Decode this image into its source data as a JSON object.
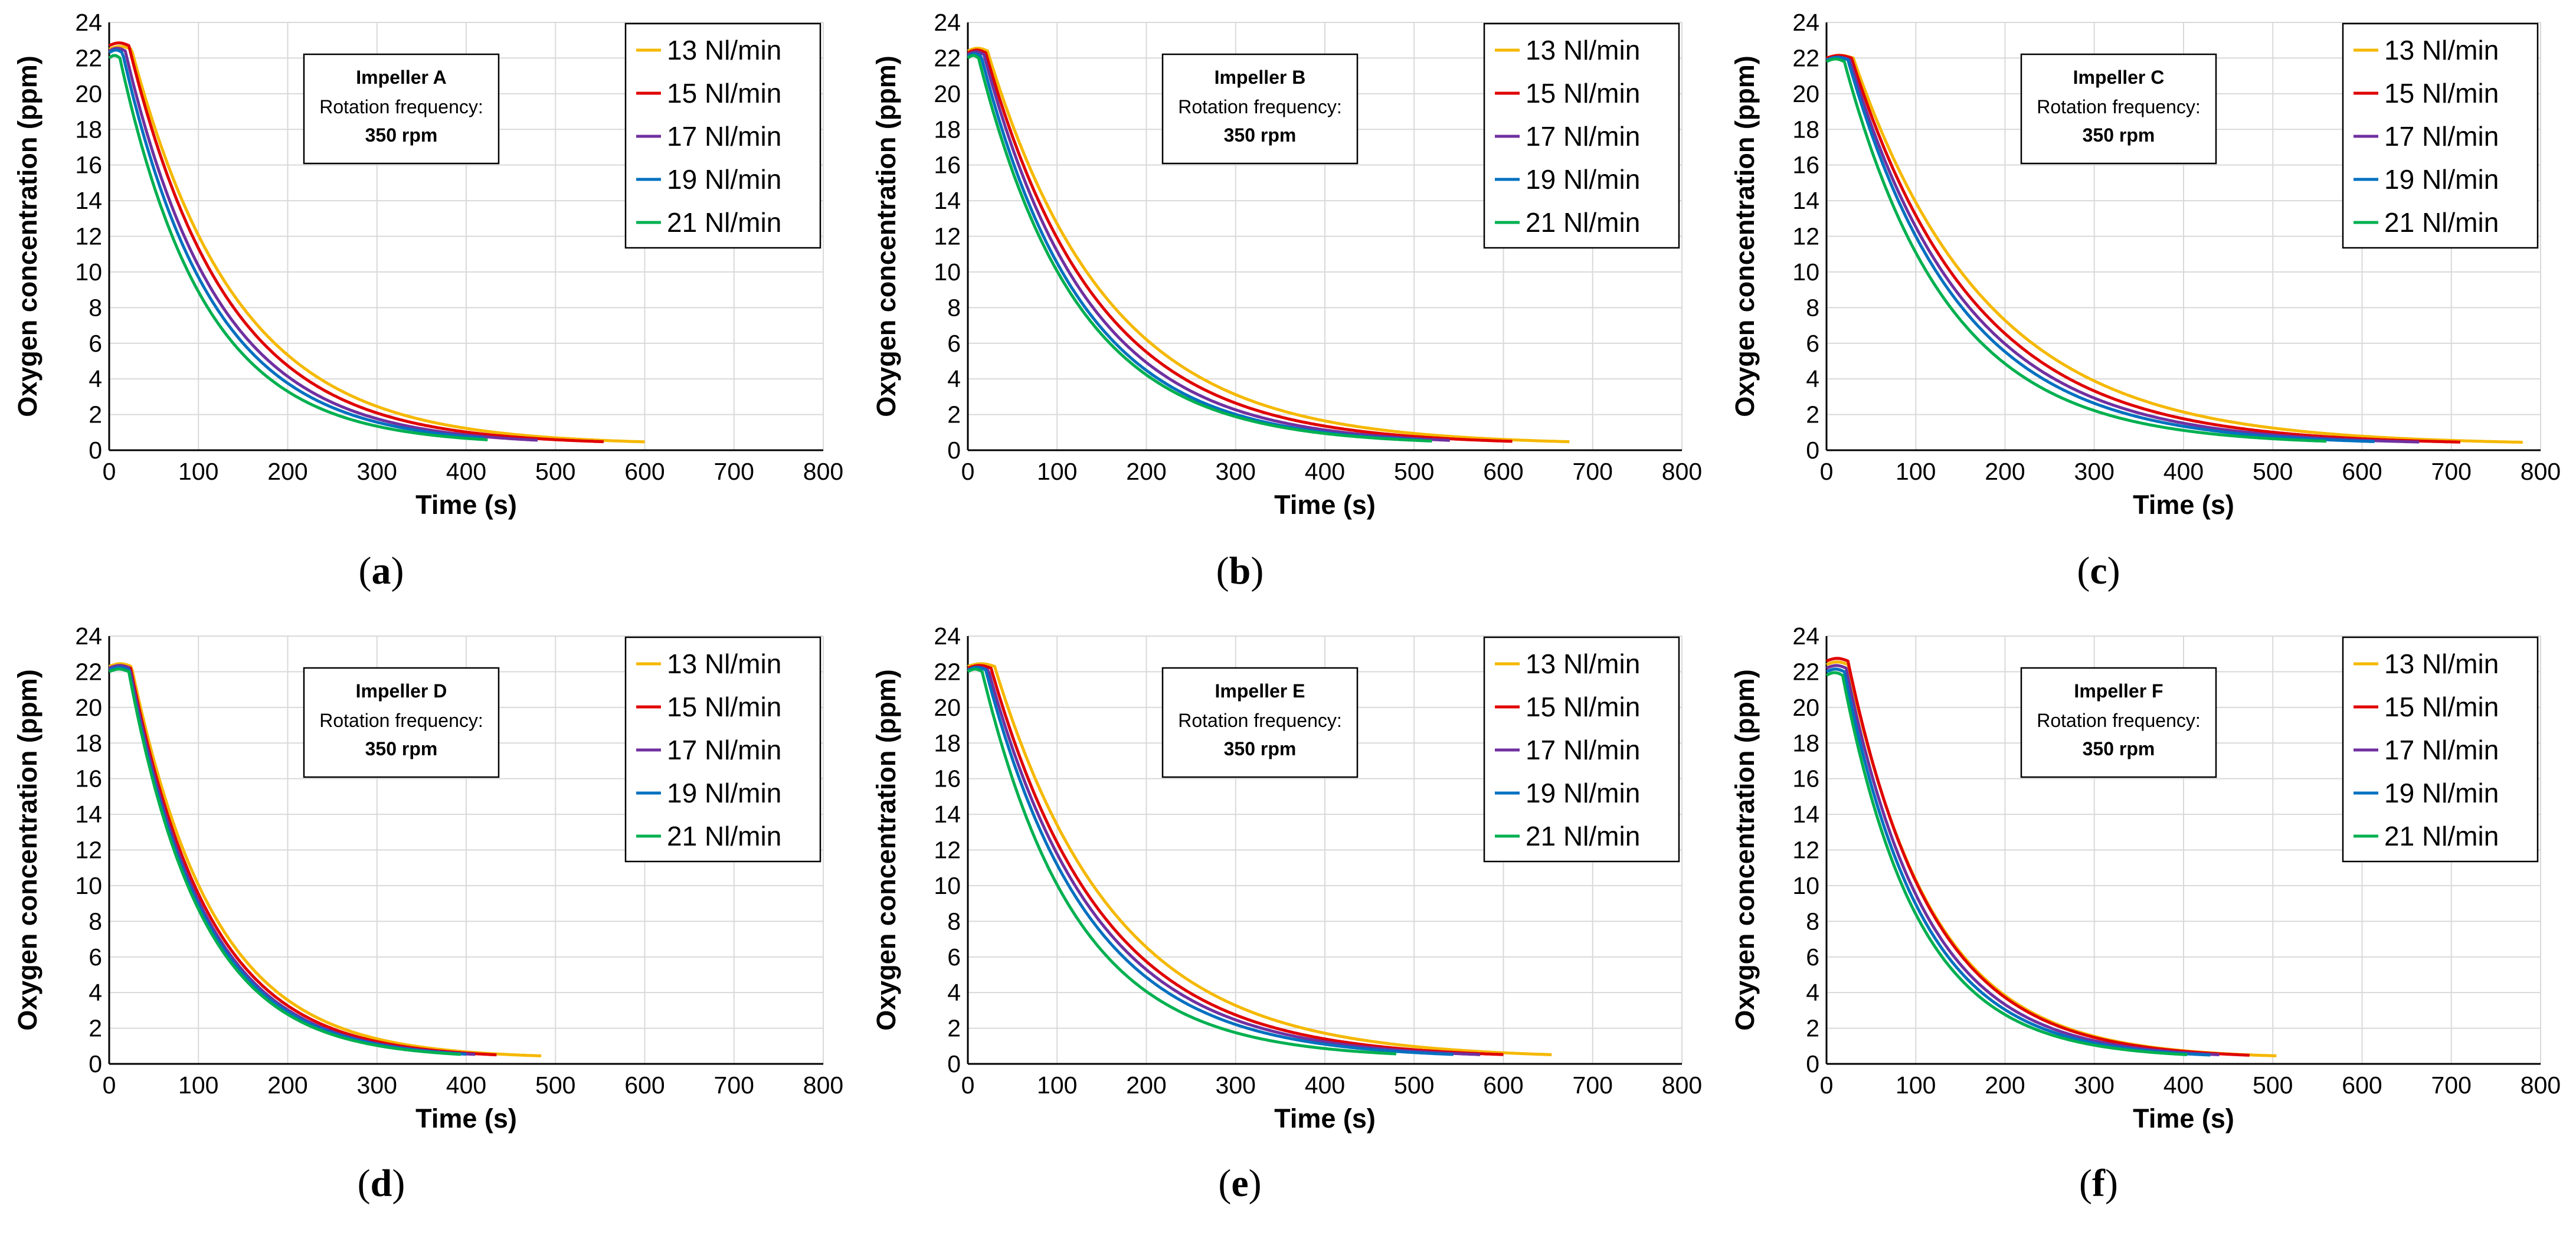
{
  "figure": {
    "series_names": [
      "13 Nl/min",
      "15 Nl/min",
      "17 Nl/min",
      "19 Nl/min",
      "21 Nl/min"
    ],
    "series_colors": [
      "#f5b800",
      "#e00000",
      "#7030a0",
      "#0070c0",
      "#00b050"
    ],
    "panel_label_open": "(",
    "panel_label_close": ")"
  },
  "chart_data": [
    {
      "type": "line",
      "label": "a",
      "annotation": {
        "title": "Impeller A",
        "line1": "Rotation frequency:",
        "line2": "350 rpm"
      },
      "xlabel": "Time (s)",
      "ylabel": "Oxygen concentration (ppm)",
      "xlim": [
        0,
        800
      ],
      "ylim": [
        0,
        24
      ],
      "xticks": [
        0,
        100,
        200,
        300,
        400,
        500,
        600,
        700,
        800
      ],
      "yticks": [
        0,
        2,
        4,
        6,
        8,
        10,
        12,
        14,
        16,
        18,
        20,
        22,
        24
      ],
      "grid": true,
      "legend": "top-right",
      "series": [
        {
          "name": "13 Nl/min",
          "start": 22.5,
          "hold": 25,
          "tau": 118,
          "end": 600,
          "floor": 0.3
        },
        {
          "name": "15 Nl/min",
          "start": 22.7,
          "hold": 22,
          "tau": 110,
          "end": 555,
          "floor": 0.3
        },
        {
          "name": "17 Nl/min",
          "start": 22.4,
          "hold": 18,
          "tau": 104,
          "end": 480,
          "floor": 0.3
        },
        {
          "name": "19 Nl/min",
          "start": 22.3,
          "hold": 15,
          "tau": 100,
          "end": 420,
          "floor": 0.3
        },
        {
          "name": "21 Nl/min",
          "start": 22.0,
          "hold": 12,
          "tau": 95,
          "end": 425,
          "floor": 0.3
        }
      ]
    },
    {
      "type": "line",
      "label": "b",
      "annotation": {
        "title": "Impeller B",
        "line1": "Rotation frequency:",
        "line2": "350 rpm"
      },
      "xlabel": "Time (s)",
      "ylabel": "Oxygen concentration (ppm)",
      "xlim": [
        0,
        800
      ],
      "ylim": [
        0,
        24
      ],
      "xticks": [
        0,
        100,
        200,
        300,
        400,
        500,
        600,
        700,
        800
      ],
      "yticks": [
        0,
        2,
        4,
        6,
        8,
        10,
        12,
        14,
        16,
        18,
        20,
        22,
        24
      ],
      "grid": true,
      "legend": "top-right",
      "series": [
        {
          "name": "13 Nl/min",
          "start": 22.4,
          "hold": 22,
          "tau": 135,
          "end": 675,
          "floor": 0.3
        },
        {
          "name": "15 Nl/min",
          "start": 22.3,
          "hold": 20,
          "tau": 125,
          "end": 610,
          "floor": 0.3
        },
        {
          "name": "17 Nl/min",
          "start": 22.2,
          "hold": 18,
          "tau": 117,
          "end": 540,
          "floor": 0.3
        },
        {
          "name": "19 Nl/min",
          "start": 22.1,
          "hold": 15,
          "tau": 112,
          "end": 510,
          "floor": 0.3
        },
        {
          "name": "21 Nl/min",
          "start": 22.0,
          "hold": 12,
          "tau": 110,
          "end": 520,
          "floor": 0.3
        }
      ]
    },
    {
      "type": "line",
      "label": "c",
      "annotation": {
        "title": "Impeller C",
        "line1": "Rotation frequency:",
        "line2": "350 rpm"
      },
      "xlabel": "Time (s)",
      "ylabel": "Oxygen concentration (ppm)",
      "xlim": [
        0,
        800
      ],
      "ylim": [
        0,
        24
      ],
      "xticks": [
        0,
        100,
        200,
        300,
        400,
        500,
        600,
        700,
        800
      ],
      "yticks": [
        0,
        2,
        4,
        6,
        8,
        10,
        12,
        14,
        16,
        18,
        20,
        22,
        24
      ],
      "grid": true,
      "legend": "top-right",
      "series": [
        {
          "name": "13 Nl/min",
          "start": 22.0,
          "hold": 30,
          "tau": 150,
          "end": 780,
          "floor": 0.3
        },
        {
          "name": "15 Nl/min",
          "start": 22.0,
          "hold": 28,
          "tau": 138,
          "end": 710,
          "floor": 0.3
        },
        {
          "name": "17 Nl/min",
          "start": 21.9,
          "hold": 26,
          "tau": 130,
          "end": 665,
          "floor": 0.3
        },
        {
          "name": "19 Nl/min",
          "start": 21.9,
          "hold": 24,
          "tau": 124,
          "end": 615,
          "floor": 0.3
        },
        {
          "name": "21 Nl/min",
          "start": 21.8,
          "hold": 20,
          "tau": 116,
          "end": 560,
          "floor": 0.3
        }
      ]
    },
    {
      "type": "line",
      "label": "d",
      "annotation": {
        "title": "Impeller D",
        "line1": "Rotation frequency:",
        "line2": "350 rpm"
      },
      "xlabel": "Time (s)",
      "ylabel": "Oxygen concentration (ppm)",
      "xlim": [
        0,
        800
      ],
      "ylim": [
        0,
        24
      ],
      "xticks": [
        0,
        100,
        200,
        300,
        400,
        500,
        600,
        700,
        800
      ],
      "yticks": [
        0,
        2,
        4,
        6,
        8,
        10,
        12,
        14,
        16,
        18,
        20,
        22,
        24
      ],
      "grid": true,
      "legend": "top-right",
      "series": [
        {
          "name": "13 Nl/min",
          "start": 22.3,
          "hold": 25,
          "tau": 92,
          "end": 485,
          "floor": 0.3
        },
        {
          "name": "15 Nl/min",
          "start": 22.2,
          "hold": 24,
          "tau": 88,
          "end": 435,
          "floor": 0.3
        },
        {
          "name": "17 Nl/min",
          "start": 22.2,
          "hold": 23,
          "tau": 85,
          "end": 410,
          "floor": 0.3
        },
        {
          "name": "19 Nl/min",
          "start": 22.1,
          "hold": 22,
          "tau": 84,
          "end": 400,
          "floor": 0.3
        },
        {
          "name": "21 Nl/min",
          "start": 22.0,
          "hold": 22,
          "tau": 82,
          "end": 395,
          "floor": 0.3
        }
      ]
    },
    {
      "type": "line",
      "label": "e",
      "annotation": {
        "title": "Impeller E",
        "line1": "Rotation frequency:",
        "line2": "350 rpm"
      },
      "xlabel": "Time (s)",
      "ylabel": "Oxygen concentration (ppm)",
      "xlim": [
        0,
        800
      ],
      "ylim": [
        0,
        24
      ],
      "xticks": [
        0,
        100,
        200,
        300,
        400,
        500,
        600,
        700,
        800
      ],
      "yticks": [
        0,
        2,
        4,
        6,
        8,
        10,
        12,
        14,
        16,
        18,
        20,
        22,
        24
      ],
      "grid": true,
      "legend": "top-right",
      "series": [
        {
          "name": "13 Nl/min",
          "start": 22.3,
          "hold": 30,
          "tau": 135,
          "end": 655,
          "floor": 0.3
        },
        {
          "name": "15 Nl/min",
          "start": 22.2,
          "hold": 26,
          "tau": 125,
          "end": 600,
          "floor": 0.3
        },
        {
          "name": "17 Nl/min",
          "start": 22.1,
          "hold": 23,
          "tau": 120,
          "end": 575,
          "floor": 0.3
        },
        {
          "name": "19 Nl/min",
          "start": 22.1,
          "hold": 20,
          "tau": 115,
          "end": 545,
          "floor": 0.3
        },
        {
          "name": "21 Nl/min",
          "start": 22.0,
          "hold": 16,
          "tau": 105,
          "end": 480,
          "floor": 0.3
        }
      ]
    },
    {
      "type": "line",
      "label": "f",
      "annotation": {
        "title": "Impeller F",
        "line1": "Rotation frequency:",
        "line2": "350 rpm"
      },
      "xlabel": "Time (s)",
      "ylabel": "Oxygen concentration (ppm)",
      "xlim": [
        0,
        800
      ],
      "ylim": [
        0,
        24
      ],
      "xticks": [
        0,
        100,
        200,
        300,
        400,
        500,
        600,
        700,
        800
      ],
      "yticks": [
        0,
        2,
        4,
        6,
        8,
        10,
        12,
        14,
        16,
        18,
        20,
        22,
        24
      ],
      "grid": true,
      "legend": "top-right",
      "series": [
        {
          "name": "13 Nl/min",
          "start": 22.4,
          "hold": 24,
          "tau": 96,
          "end": 505,
          "floor": 0.3
        },
        {
          "name": "15 Nl/min",
          "start": 22.6,
          "hold": 24,
          "tau": 94,
          "end": 475,
          "floor": 0.3
        },
        {
          "name": "17 Nl/min",
          "start": 22.2,
          "hold": 22,
          "tau": 90,
          "end": 440,
          "floor": 0.3
        },
        {
          "name": "19 Nl/min",
          "start": 22.0,
          "hold": 20,
          "tau": 87,
          "end": 430,
          "floor": 0.3
        },
        {
          "name": "21 Nl/min",
          "start": 21.8,
          "hold": 18,
          "tau": 84,
          "end": 405,
          "floor": 0.3
        }
      ]
    }
  ]
}
